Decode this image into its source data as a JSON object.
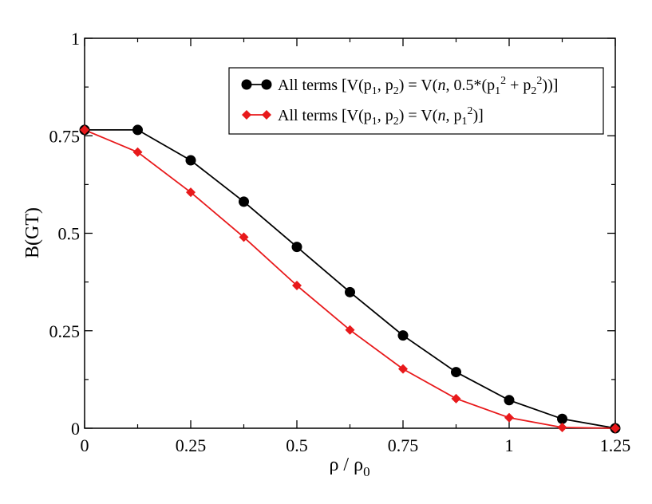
{
  "chart_data": {
    "type": "line",
    "title": "",
    "xlabel": "ρ / ρ0",
    "ylabel": "B(GT)",
    "xlim": [
      0,
      1.25
    ],
    "ylim": [
      0,
      1
    ],
    "x_ticks": [
      "0",
      "0.25",
      "0.5",
      "0.75",
      "1",
      "1.25"
    ],
    "y_ticks": [
      "0",
      "0.25",
      "0.5",
      "0.75",
      "1"
    ],
    "x_tick_values": [
      0,
      0.25,
      0.5,
      0.75,
      1,
      1.25
    ],
    "y_tick_values": [
      0,
      0.25,
      0.5,
      0.75,
      1
    ],
    "grid": false,
    "legend_position": "top-right",
    "series": [
      {
        "name": "All terms [V(p1, p2) = V(n, 0.5*(p1^2 + p2^2))]",
        "color": "#000000",
        "marker": "circle",
        "x": [
          0,
          0.125,
          0.25,
          0.375,
          0.5,
          0.625,
          0.75,
          0.875,
          1.0,
          1.125,
          1.25
        ],
        "values": [
          0.765,
          0.765,
          0.687,
          0.581,
          0.465,
          0.349,
          0.238,
          0.144,
          0.072,
          0.024,
          0.0
        ]
      },
      {
        "name": "All terms [V(p1, p2) = V(n, p1^2)]",
        "color": "#e8191b",
        "marker": "diamond",
        "x": [
          0,
          0.125,
          0.25,
          0.375,
          0.5,
          0.625,
          0.75,
          0.875,
          1.0,
          1.125,
          1.25
        ],
        "values": [
          0.765,
          0.708,
          0.605,
          0.49,
          0.366,
          0.252,
          0.152,
          0.076,
          0.027,
          0.002,
          0.0
        ]
      }
    ]
  },
  "legend": {
    "entry1_prefix": "All terms [V(p",
    "entry1_sub1": "1",
    "entry1_mid1": ", p",
    "entry1_sub2": "2",
    "entry1_mid2": ") = V(",
    "entry1_var": "n",
    "entry1_mid3": ", 0.5*(p",
    "entry1_sub3": "1",
    "entry1_sup1": "2",
    "entry1_mid4": " + p",
    "entry1_sub4": "2",
    "entry1_sup2": "2",
    "entry1_end": "))]",
    "entry2_prefix": "All terms [V(p",
    "entry2_sub1": "1",
    "entry2_mid1": ", p",
    "entry2_sub2": "2",
    "entry2_mid2": ") = V(",
    "entry2_var": "n",
    "entry2_mid3": ", p",
    "entry2_sub3": "1",
    "entry2_sup1": "2",
    "entry2_end": ")]"
  },
  "axis_text": {
    "x_label_main": "ρ / ρ",
    "x_label_sub": "0",
    "y_label": "B(GT)"
  }
}
